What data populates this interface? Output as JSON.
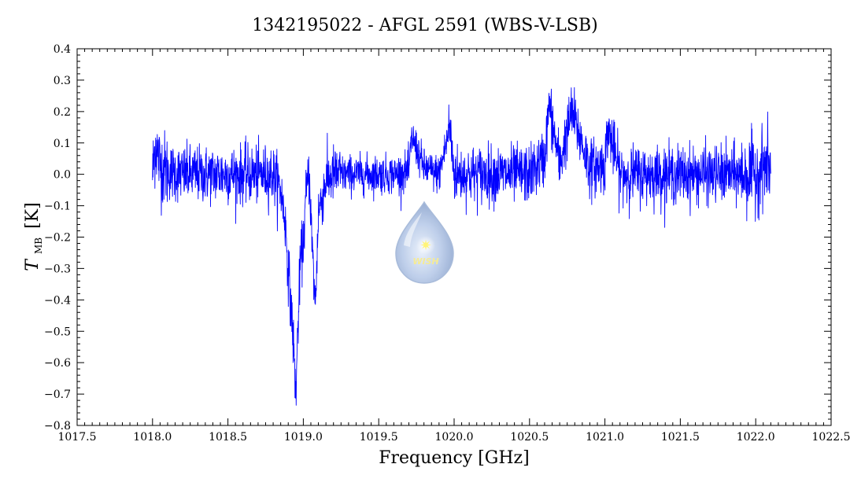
{
  "chart_data": {
    "type": "line",
    "title": "1342195022 - AFGL 2591 (WBS-V-LSB)",
    "xlabel": "Frequency [GHz]",
    "ylabel_main": "T",
    "ylabel_sub": "MB",
    "ylabel_unit": "[K]",
    "xlim": [
      1017.5,
      1022.5
    ],
    "ylim": [
      -0.8,
      0.4
    ],
    "xticks": [
      1017.5,
      1018.0,
      1018.5,
      1019.0,
      1019.5,
      1020.0,
      1020.5,
      1021.0,
      1021.5,
      1022.0,
      1022.5
    ],
    "xtick_labels": [
      "1017.5",
      "1018.0",
      "1018.5",
      "1019.0",
      "1019.5",
      "1020.0",
      "1020.5",
      "1021.0",
      "1021.5",
      "1022.0",
      "1022.5"
    ],
    "yticks": [
      0.4,
      0.3,
      0.2,
      0.1,
      0.0,
      -0.1,
      -0.2,
      -0.3,
      -0.4,
      -0.5,
      -0.6,
      -0.7,
      -0.8
    ],
    "ytick_labels": [
      "0.4",
      "0.3",
      "0.2",
      "0.1",
      "0.0",
      "−0.1",
      "−0.2",
      "−0.3",
      "−0.4",
      "−0.5",
      "−0.6",
      "−0.7",
      "−0.8"
    ],
    "grid": false,
    "series": [
      {
        "color": "#0000ff",
        "x_range": [
          1018.0,
          1022.1
        ],
        "x": [
          1018.0,
          1018.02,
          1018.05,
          1018.1,
          1018.2,
          1018.3,
          1018.4,
          1018.5,
          1018.6,
          1018.7,
          1018.8,
          1018.85,
          1018.88,
          1018.9,
          1018.93,
          1018.95,
          1018.96,
          1018.98,
          1019.0,
          1019.02,
          1019.04,
          1019.06,
          1019.08,
          1019.1,
          1019.15,
          1019.2,
          1019.3,
          1019.4,
          1019.5,
          1019.6,
          1019.7,
          1019.72,
          1019.8,
          1019.9,
          1019.95,
          1019.97,
          1020.0,
          1020.1,
          1020.2,
          1020.3,
          1020.4,
          1020.5,
          1020.6,
          1020.63,
          1020.7,
          1020.78,
          1020.9,
          1021.0,
          1021.02,
          1021.1,
          1021.2,
          1021.3,
          1021.4,
          1021.5,
          1021.6,
          1021.7,
          1021.8,
          1021.9,
          1022.0,
          1022.05,
          1022.1
        ],
        "y": [
          0.0,
          0.1,
          0.03,
          0.01,
          0.0,
          0.0,
          0.0,
          0.0,
          0.0,
          0.0,
          0.0,
          -0.05,
          -0.15,
          -0.3,
          -0.5,
          -0.7,
          -0.55,
          -0.28,
          -0.22,
          -0.05,
          0.0,
          -0.25,
          -0.42,
          -0.12,
          -0.02,
          0.0,
          0.0,
          0.0,
          0.0,
          0.0,
          0.01,
          0.12,
          0.02,
          0.0,
          0.1,
          0.16,
          0.0,
          0.0,
          0.0,
          0.0,
          0.0,
          0.0,
          0.05,
          0.22,
          0.03,
          0.2,
          0.02,
          0.03,
          0.15,
          0.0,
          0.0,
          0.0,
          0.0,
          0.0,
          0.0,
          0.0,
          0.0,
          0.0,
          0.0,
          0.03,
          0.02
        ]
      }
    ],
    "logo": {
      "name": "wish-logo",
      "text": "WISH"
    }
  }
}
